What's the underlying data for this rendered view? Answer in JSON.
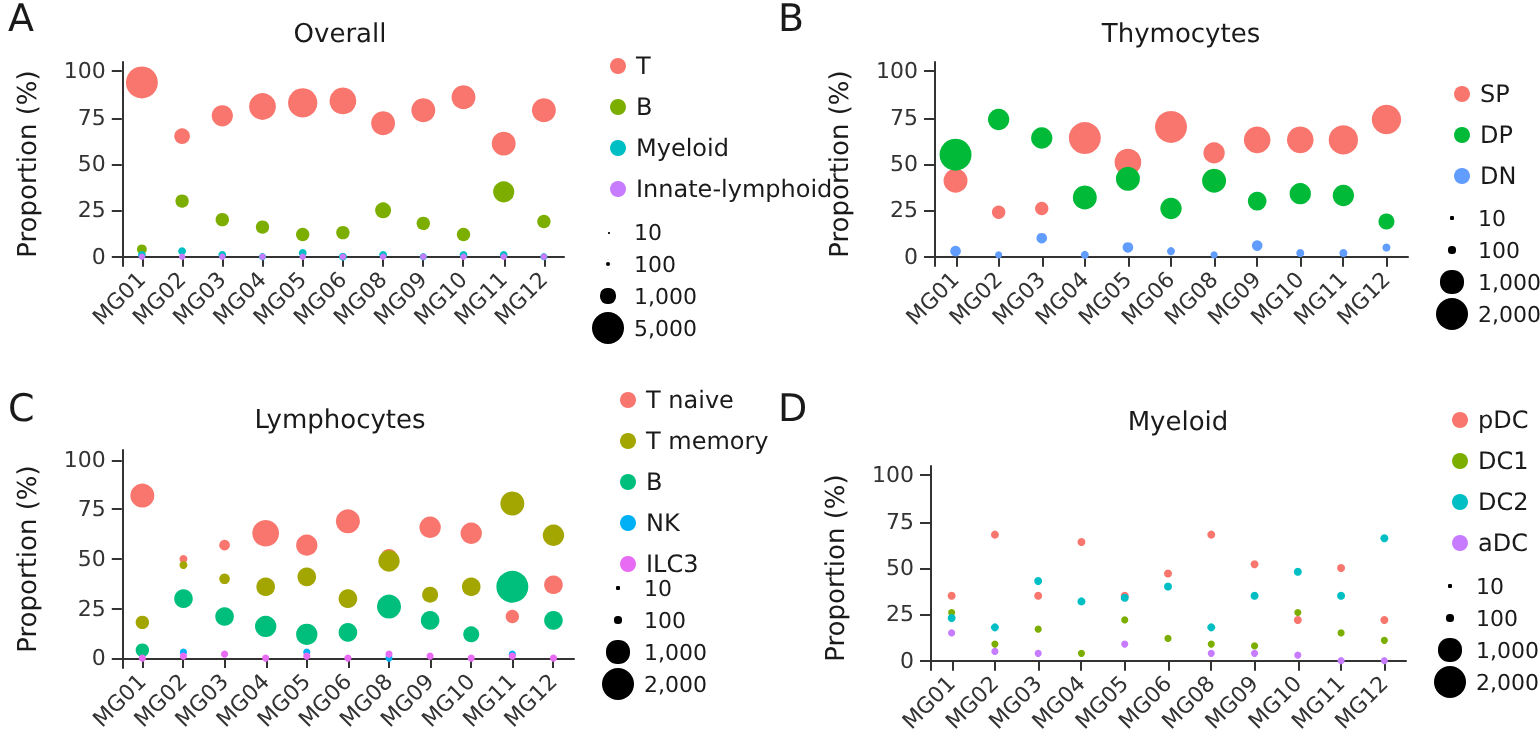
{
  "chart_data": [
    {
      "type": "bubble",
      "title": "Overall",
      "ylabel": "Proportion (%)",
      "annotations": [
        "A"
      ],
      "categories": [
        "MG01",
        "MG02",
        "MG03",
        "MG04",
        "MG05",
        "MG06",
        "MG08",
        "MG09",
        "MG10",
        "MG11",
        "MG12"
      ],
      "ylim": [
        -5,
        105
      ],
      "yticks": [
        0,
        25,
        50,
        75,
        100
      ],
      "legend": "right",
      "size_legend": [
        10,
        100,
        {
          "value": 1000,
          "label": "1,000"
        },
        {
          "value": 5000,
          "label": "5,000"
        }
      ],
      "series": [
        {
          "name": "T",
          "color": "#f8766d",
          "values": [
            94,
            65,
            76,
            81,
            83,
            84,
            72,
            79,
            86,
            61,
            79
          ],
          "sizes": [
            5000,
            1200,
            2200,
            3500,
            4200,
            3500,
            2800,
            2800,
            2800,
            2800,
            2800
          ]
        },
        {
          "name": "B",
          "color": "#7cae00",
          "values": [
            4,
            30,
            20,
            16,
            12,
            13,
            25,
            18,
            12,
            35,
            19
          ],
          "sizes": [
            470,
            870,
            870,
            870,
            870,
            870,
            1250,
            870,
            870,
            2200,
            870
          ]
        },
        {
          "name": "Myeloid",
          "color": "#00bfc4",
          "values": [
            1,
            3,
            1,
            0,
            2,
            0,
            1,
            0,
            1,
            1,
            0
          ],
          "sizes": [
            300,
            300,
            300,
            250,
            300,
            300,
            300,
            250,
            300,
            300,
            250
          ]
        },
        {
          "name": "Innate-lymphoid",
          "color": "#c77cff",
          "values": [
            0,
            0,
            0,
            0,
            0,
            0,
            0,
            0,
            0,
            0,
            0
          ],
          "sizes": [
            200,
            200,
            200,
            200,
            200,
            200,
            200,
            200,
            200,
            200,
            200
          ]
        }
      ]
    },
    {
      "type": "bubble",
      "title": "Thymocytes",
      "ylabel": "Proportion (%)",
      "annotations": [
        "B"
      ],
      "categories": [
        "MG01",
        "MG02",
        "MG03",
        "MG04",
        "MG05",
        "MG06",
        "MG08",
        "MG09",
        "MG10",
        "MG11",
        "MG12"
      ],
      "ylim": [
        -5,
        105
      ],
      "yticks": [
        0,
        25,
        50,
        75,
        100
      ],
      "legend": "right",
      "size_legend": [
        10,
        100,
        {
          "value": 1000,
          "label": "1,000"
        },
        {
          "value": 2000,
          "label": "2,000"
        }
      ],
      "series": [
        {
          "name": "SP",
          "color": "#f8766d",
          "values": [
            41,
            24,
            26,
            64,
            51,
            70,
            56,
            63,
            63,
            63,
            74
          ],
          "sizes": [
            1125,
            350,
            350,
            2000,
            1390,
            2000,
            890,
            1390,
            1390,
            1680,
            1680
          ]
        },
        {
          "name": "DP",
          "color": "#00ba38",
          "values": [
            55,
            74,
            64,
            32,
            42,
            26,
            41,
            30,
            34,
            33,
            19
          ],
          "sizes": [
            2000,
            890,
            890,
            1125,
            1125,
            890,
            1125,
            680,
            890,
            890,
            500
          ]
        },
        {
          "name": "DN",
          "color": "#619cff",
          "values": [
            3,
            1,
            10,
            1,
            5,
            3,
            1,
            6,
            2,
            2,
            5
          ],
          "sizes": [
            220,
            100,
            220,
            125,
            220,
            125,
            100,
            220,
            125,
            125,
            125
          ]
        }
      ]
    },
    {
      "type": "bubble",
      "title": "Lymphocytes",
      "ylabel": "Proportion (%)",
      "annotations": [
        "C"
      ],
      "categories": [
        "MG01",
        "MG02",
        "MG03",
        "MG04",
        "MG05",
        "MG06",
        "MG08",
        "MG09",
        "MG10",
        "MG11",
        "MG12"
      ],
      "ylim": [
        -5,
        105
      ],
      "yticks": [
        0,
        25,
        50,
        75,
        100
      ],
      "legend": "right",
      "size_legend": [
        10,
        100,
        {
          "value": 1000,
          "label": "1,000"
        },
        {
          "value": 2000,
          "label": "2,000"
        }
      ],
      "series": [
        {
          "name": "T naive",
          "color": "#f8766d",
          "values": [
            82,
            50,
            57,
            63,
            57,
            69,
            51,
            66,
            63,
            21,
            37
          ],
          "sizes": [
            1125,
            125,
            220,
            1390,
            890,
            1125,
            500,
            890,
            890,
            350,
            680
          ]
        },
        {
          "name": "T memory",
          "color": "#a3a500",
          "values": [
            18,
            47,
            40,
            36,
            41,
            30,
            49,
            32,
            36,
            78,
            62
          ],
          "sizes": [
            350,
            125,
            220,
            680,
            680,
            680,
            890,
            500,
            680,
            1125,
            890
          ]
        },
        {
          "name": "B",
          "color": "#00bf7d",
          "values": [
            4,
            30,
            21,
            16,
            12,
            13,
            26,
            19,
            12,
            36,
            19
          ],
          "sizes": [
            350,
            680,
            680,
            890,
            890,
            680,
            1125,
            680,
            500,
            2000,
            680
          ]
        },
        {
          "name": "NK",
          "color": "#00b0f6",
          "values": [
            null,
            3,
            null,
            null,
            3,
            null,
            0,
            null,
            null,
            2,
            null
          ],
          "sizes": [
            null,
            100,
            null,
            null,
            100,
            null,
            100,
            null,
            null,
            100,
            null
          ]
        },
        {
          "name": "ILC3",
          "color": "#e76bf3",
          "values": [
            0,
            1,
            2,
            0,
            1,
            0,
            2,
            1,
            0,
            1,
            0
          ],
          "sizes": [
            100,
            100,
            100,
            100,
            100,
            100,
            100,
            100,
            100,
            100,
            100
          ]
        }
      ]
    },
    {
      "type": "bubble",
      "title": "Myeloid",
      "ylabel": "Proportion (%)",
      "annotations": [
        "D"
      ],
      "categories": [
        "MG01",
        "MG02",
        "MG03",
        "MG04",
        "MG05",
        "MG06",
        "MG08",
        "MG09",
        "MG10",
        "MG11",
        "MG12"
      ],
      "ylim": [
        -5,
        105
      ],
      "yticks": [
        0,
        25,
        50,
        75,
        100
      ],
      "legend": "right",
      "size_legend": [
        10,
        100,
        {
          "value": 1000,
          "label": "1,000"
        },
        {
          "value": 2000,
          "label": "2,000"
        }
      ],
      "series": [
        {
          "name": "pDC",
          "color": "#f8766d",
          "values": [
            35,
            68,
            35,
            64,
            35,
            47,
            68,
            52,
            22,
            50,
            22
          ],
          "sizes": [
            125,
            125,
            125,
            125,
            125,
            125,
            125,
            125,
            125,
            125,
            125
          ]
        },
        {
          "name": "DC1",
          "color": "#7cae00",
          "values": [
            26,
            9,
            17,
            4,
            22,
            12,
            9,
            8,
            26,
            15,
            11
          ],
          "sizes": [
            100,
            100,
            100,
            100,
            100,
            100,
            100,
            100,
            100,
            100,
            100
          ]
        },
        {
          "name": "DC2",
          "color": "#00bfc4",
          "values": [
            23,
            18,
            43,
            32,
            34,
            40,
            18,
            35,
            48,
            35,
            66
          ],
          "sizes": [
            125,
            125,
            125,
            125,
            125,
            125,
            125,
            125,
            125,
            125,
            125
          ]
        },
        {
          "name": "aDC",
          "color": "#c77cff",
          "values": [
            15,
            5,
            4,
            null,
            9,
            null,
            4,
            4,
            3,
            0,
            0
          ],
          "sizes": [
            100,
            100,
            100,
            null,
            100,
            null,
            100,
            100,
            100,
            100,
            100
          ]
        }
      ]
    }
  ]
}
